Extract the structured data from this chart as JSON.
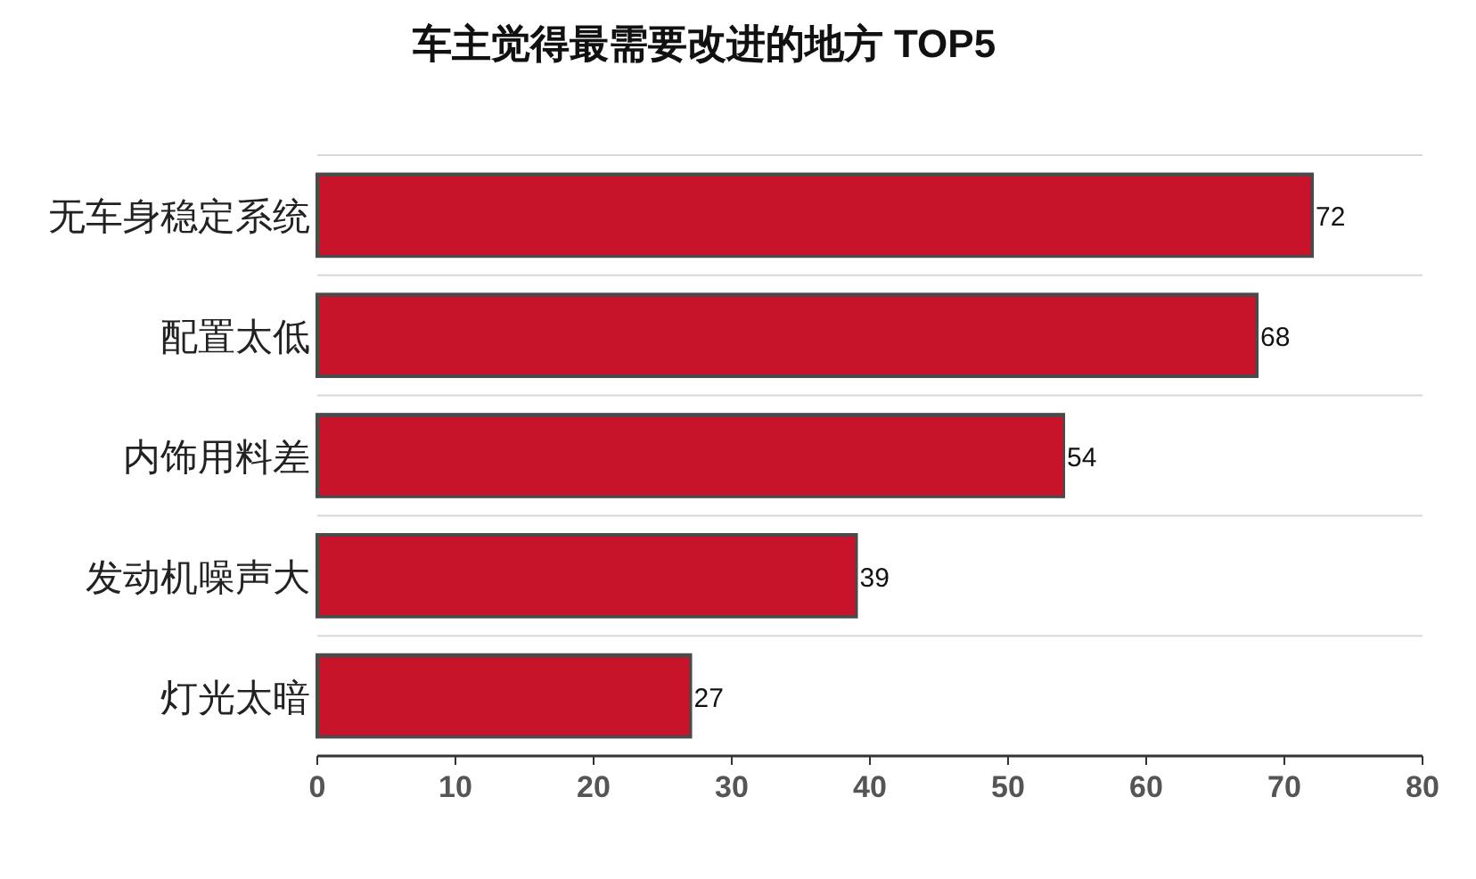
{
  "chart_data": {
    "type": "bar",
    "orientation": "horizontal",
    "title": "车主觉得最需要改进的地方 TOP5",
    "categories": [
      "无车身稳定系统",
      "配置太低",
      "内饰用料差",
      "发动机噪声大",
      "灯光太暗"
    ],
    "values": [
      72,
      68,
      54,
      39,
      27
    ],
    "color": "#c8142b",
    "xlim": [
      0,
      80
    ],
    "xticks": [
      0,
      10,
      20,
      30,
      40,
      50,
      60,
      70,
      80
    ],
    "grid": "y",
    "data_labels": true
  }
}
